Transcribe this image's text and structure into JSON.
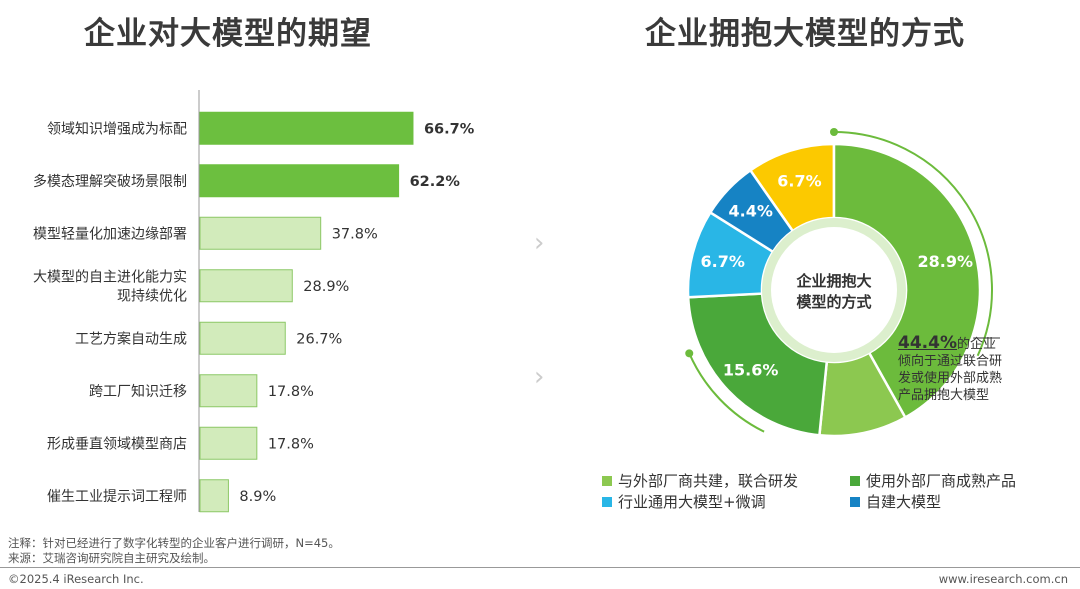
{
  "left_title": "企业对大模型的期望",
  "right_title": "企业拥抱大模型的方式",
  "chart_data": [
    {
      "type": "bar",
      "orientation": "horizontal",
      "categories": [
        [
          "领域知识增强成为标配"
        ],
        [
          "多模态理解突破场景限制"
        ],
        [
          "模型轻量化加速边缘部署"
        ],
        [
          "大模型的自主进化能力实",
          "现持续优化"
        ],
        [
          "工艺方案自动生成"
        ],
        [
          "跨工厂知识迁移"
        ],
        [
          "形成垂直领域模型商店"
        ],
        [
          "催生工业提示词工程师"
        ]
      ],
      "values": [
        66.7,
        62.2,
        37.8,
        28.9,
        26.7,
        17.8,
        17.8,
        8.9
      ],
      "value_labels": [
        "66.7%",
        "62.2%",
        "37.8%",
        "28.9%",
        "26.7%",
        "17.8%",
        "17.8%",
        "8.9%"
      ],
      "highlight": [
        true,
        true,
        false,
        false,
        false,
        false,
        false,
        false
      ],
      "colors": {
        "highlight": "#6cbf3f",
        "normal": "#d2ebbb",
        "normal_border": "#8cc866"
      },
      "xlim": [
        0,
        100
      ]
    },
    {
      "type": "pie",
      "donut": true,
      "center_label": [
        "企业拥抱大",
        "模型的方式"
      ],
      "slices": [
        {
          "label": "6.7%",
          "value": 6.7,
          "color": "#fcc900"
        },
        {
          "label": "28.9%",
          "value": 28.9,
          "color": "#6cbb3c"
        },
        {
          "label": "",
          "value": 6.7,
          "color": "#8cc850"
        },
        {
          "label": "15.6%",
          "value": 15.6,
          "color": "#4aa83a"
        },
        {
          "label": "6.7%",
          "value": 6.7,
          "color": "#29b6e6"
        },
        {
          "label": "4.4%",
          "value": 4.4,
          "color": "#1683c4"
        }
      ],
      "callout": {
        "value": "44.4%",
        "text": "的企业倾向于通过联合研发或使用外部成熟产品拥抱大模型"
      },
      "legend": [
        {
          "label": "与外部厂商共建，联合研发",
          "color": "#8cc850"
        },
        {
          "label": "使用外部厂商成熟产品",
          "color": "#4aa83a"
        },
        {
          "label": "行业通用大模型+微调",
          "color": "#29b6e6"
        },
        {
          "label": "自建大模型",
          "color": "#1683c4"
        }
      ]
    }
  ],
  "notes": {
    "note": "注释：针对已经进行了数字化转型的企业客户进行调研，N=45。",
    "source": "来源：艾瑞咨询研究院自主研究及绘制。"
  },
  "footer": {
    "left": "©2025.4 iResearch Inc.",
    "right": "www.iresearch.com.cn"
  }
}
